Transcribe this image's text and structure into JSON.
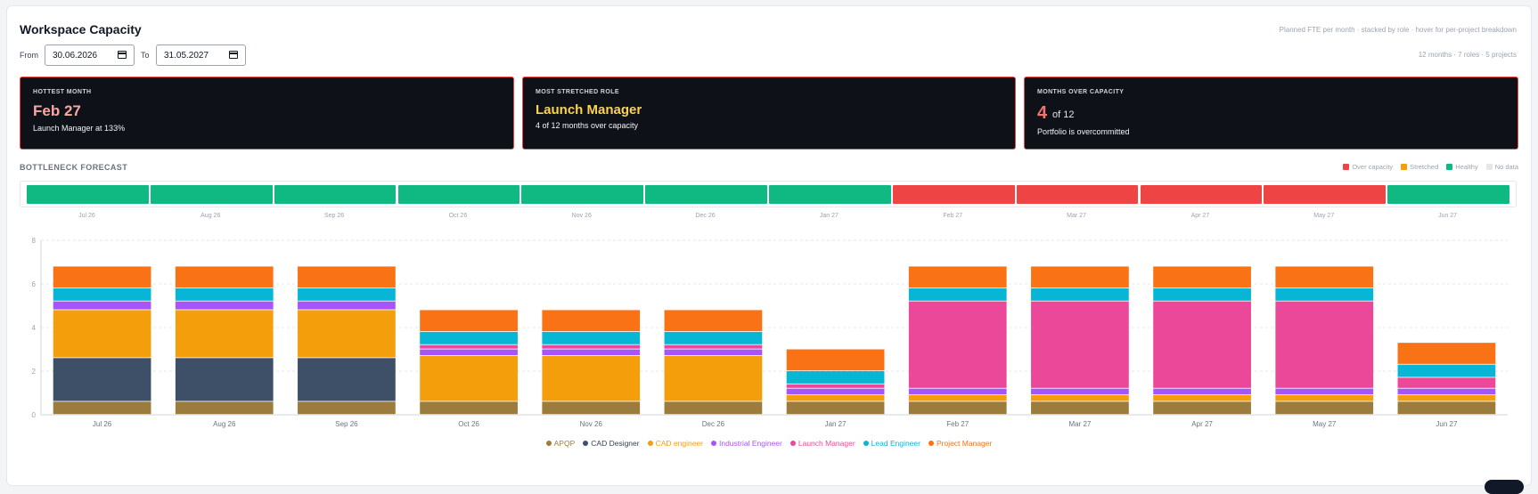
{
  "header": {
    "title": "Workspace Capacity",
    "subtitle": "Planned FTE per month · stacked by role · hover for per-project breakdown",
    "meta": "12 months · 7 roles · 5 projects"
  },
  "range": {
    "from_label": "From",
    "from_value": "30.06.2026",
    "to_label": "To",
    "to_value": "31.05.2027"
  },
  "kpis": {
    "hottest": {
      "label": "HOTTEST MONTH",
      "value": "Feb 27",
      "sub": "Launch Manager at 133%",
      "color": "#fca5a5"
    },
    "stretched": {
      "label": "MOST STRETCHED ROLE",
      "value": "Launch Manager",
      "sub": "4 of 12 months over capacity",
      "color": "#fcd34d"
    },
    "over": {
      "label": "MONTHS OVER CAPACITY",
      "value": "4",
      "of": "of 12",
      "sub": "Portfolio is overcommitted"
    }
  },
  "forecast": {
    "title": "BOTTLENECK FORECAST",
    "legend": [
      {
        "label": "Over capacity",
        "color": "#ef4444"
      },
      {
        "label": "Stretched",
        "color": "#f59e0b"
      },
      {
        "label": "Healthy",
        "color": "#10b981"
      },
      {
        "label": "No data",
        "color": "#e5e7eb"
      }
    ],
    "months": [
      "Jul 26",
      "Aug 26",
      "Sep 26",
      "Oct 26",
      "Nov 26",
      "Dec 26",
      "Jan 27",
      "Feb 27",
      "Mar 27",
      "Apr 27",
      "May 27",
      "Jun 27"
    ],
    "status": [
      "healthy",
      "healthy",
      "healthy",
      "healthy",
      "healthy",
      "healthy",
      "healthy",
      "over",
      "over",
      "over",
      "over",
      "healthy"
    ],
    "status_colors": {
      "healthy": "#10b981",
      "over": "#ef4444",
      "stretched": "#f59e0b",
      "nodata": "#e5e7eb"
    }
  },
  "chart_data": {
    "type": "bar",
    "stacked": true,
    "categories": [
      "Jul 26",
      "Aug 26",
      "Sep 26",
      "Oct 26",
      "Nov 26",
      "Dec 26",
      "Jan 27",
      "Feb 27",
      "Mar 27",
      "Apr 27",
      "May 27",
      "Jun 27"
    ],
    "ylim": [
      0,
      8
    ],
    "yticks": [
      0,
      2,
      4,
      6,
      8
    ],
    "grid": true,
    "legend_position": "bottom",
    "series": [
      {
        "name": "APQP",
        "color": "#9c7c3c",
        "values": [
          0.6,
          0.6,
          0.6,
          0.6,
          0.6,
          0.6,
          0.6,
          0.6,
          0.6,
          0.6,
          0.6,
          0.6
        ]
      },
      {
        "name": "CAD Designer",
        "color": "#3d5068",
        "values": [
          2.0,
          2.0,
          2.0,
          0,
          0,
          0,
          0,
          0,
          0,
          0,
          0,
          0
        ]
      },
      {
        "name": "CAD engineer",
        "color": "#f59e0b",
        "values": [
          2.2,
          2.2,
          2.2,
          2.1,
          2.1,
          2.1,
          0.3,
          0.3,
          0.3,
          0.3,
          0.3,
          0.3
        ]
      },
      {
        "name": "Industrial Engineer",
        "color": "#a855f7",
        "values": [
          0.4,
          0.4,
          0.4,
          0.3,
          0.3,
          0.3,
          0.3,
          0.3,
          0.3,
          0.3,
          0.3,
          0.3
        ]
      },
      {
        "name": "Launch Manager",
        "color": "#ec4899",
        "values": [
          0,
          0,
          0,
          0.2,
          0.2,
          0.2,
          0.2,
          4.0,
          4.0,
          4.0,
          4.0,
          0.5
        ]
      },
      {
        "name": "Lead Engineer",
        "color": "#06b6d4",
        "values": [
          0.6,
          0.6,
          0.6,
          0.6,
          0.6,
          0.6,
          0.6,
          0.6,
          0.6,
          0.6,
          0.6,
          0.6
        ]
      },
      {
        "name": "Project Manager",
        "color": "#f97316",
        "values": [
          1.0,
          1.0,
          1.0,
          1.0,
          1.0,
          1.0,
          1.0,
          1.0,
          1.0,
          1.0,
          1.0,
          1.0
        ]
      }
    ]
  }
}
